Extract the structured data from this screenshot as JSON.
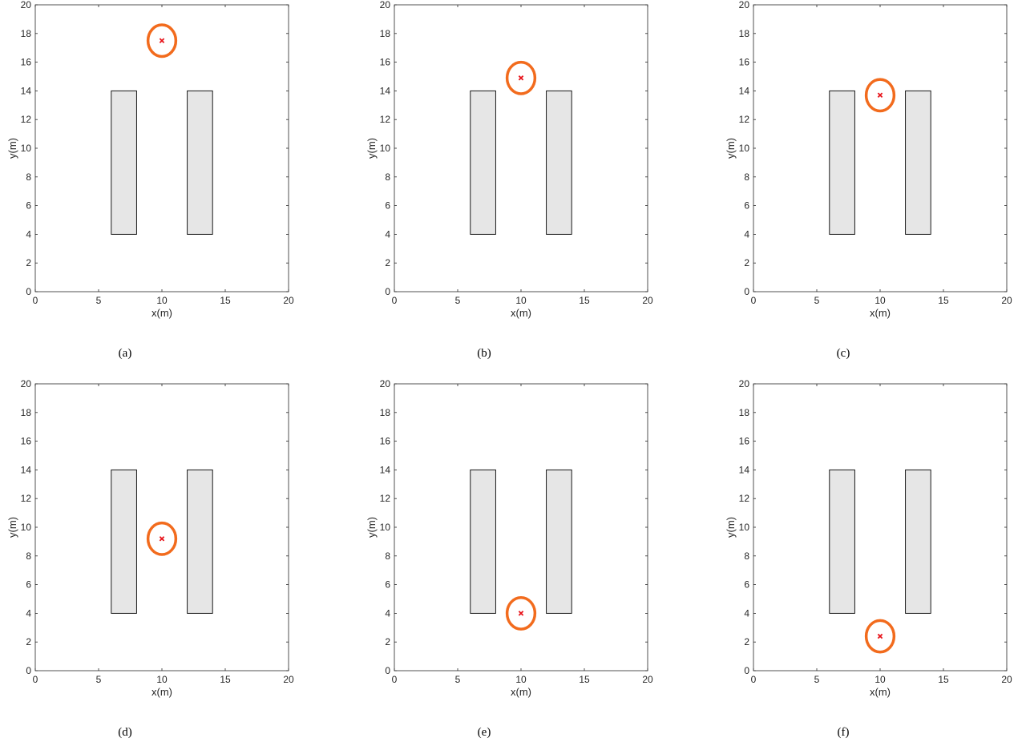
{
  "colors": {
    "axis": "#262626",
    "obstacle_fill": "#e6e6e6",
    "obstacle_edge": "#000000",
    "circle": "#f26b1d",
    "marker": "#e8141b"
  },
  "chart_data": [
    {
      "type": "scatter",
      "caption": "(a)",
      "xlabel": "x(m)",
      "ylabel": "y(m)",
      "xlim": [
        0,
        20
      ],
      "ylim": [
        0,
        20
      ],
      "xticks": [
        0,
        5,
        10,
        15,
        20
      ],
      "yticks": [
        0,
        2,
        4,
        6,
        8,
        10,
        12,
        14,
        16,
        18,
        20
      ],
      "grid": false,
      "obstacles": [
        {
          "x": [
            6,
            8
          ],
          "y": [
            4,
            14
          ]
        },
        {
          "x": [
            12,
            14
          ],
          "y": [
            4,
            14
          ]
        }
      ],
      "target": {
        "x": 10,
        "y": 17.5
      },
      "circle_radius": 1.1
    },
    {
      "type": "scatter",
      "caption": "(b)",
      "xlabel": "x(m)",
      "ylabel": "y(m)",
      "xlim": [
        0,
        20
      ],
      "ylim": [
        0,
        20
      ],
      "xticks": [
        0,
        5,
        10,
        15,
        20
      ],
      "yticks": [
        0,
        2,
        4,
        6,
        8,
        10,
        12,
        14,
        16,
        18,
        20
      ],
      "grid": false,
      "obstacles": [
        {
          "x": [
            6,
            8
          ],
          "y": [
            4,
            14
          ]
        },
        {
          "x": [
            12,
            14
          ],
          "y": [
            4,
            14
          ]
        }
      ],
      "target": {
        "x": 10,
        "y": 14.9
      },
      "circle_radius": 1.1
    },
    {
      "type": "scatter",
      "caption": "(c)",
      "xlabel": "x(m)",
      "ylabel": "y(m)",
      "xlim": [
        0,
        20
      ],
      "ylim": [
        0,
        20
      ],
      "xticks": [
        0,
        5,
        10,
        15,
        20
      ],
      "yticks": [
        0,
        2,
        4,
        6,
        8,
        10,
        12,
        14,
        16,
        18,
        20
      ],
      "grid": false,
      "obstacles": [
        {
          "x": [
            6,
            8
          ],
          "y": [
            4,
            14
          ]
        },
        {
          "x": [
            12,
            14
          ],
          "y": [
            4,
            14
          ]
        }
      ],
      "target": {
        "x": 10,
        "y": 13.7
      },
      "circle_radius": 1.1
    },
    {
      "type": "scatter",
      "caption": "(d)",
      "xlabel": "x(m)",
      "ylabel": "y(m)",
      "xlim": [
        0,
        20
      ],
      "ylim": [
        0,
        20
      ],
      "xticks": [
        0,
        5,
        10,
        15,
        20
      ],
      "yticks": [
        0,
        2,
        4,
        6,
        8,
        10,
        12,
        14,
        16,
        18,
        20
      ],
      "grid": false,
      "obstacles": [
        {
          "x": [
            6,
            8
          ],
          "y": [
            4,
            14
          ]
        },
        {
          "x": [
            12,
            14
          ],
          "y": [
            4,
            14
          ]
        }
      ],
      "target": {
        "x": 10,
        "y": 9.2
      },
      "circle_radius": 1.1
    },
    {
      "type": "scatter",
      "caption": "(e)",
      "xlabel": "x(m)",
      "ylabel": "y(m)",
      "xlim": [
        0,
        20
      ],
      "ylim": [
        0,
        20
      ],
      "xticks": [
        0,
        5,
        10,
        15,
        20
      ],
      "yticks": [
        0,
        2,
        4,
        6,
        8,
        10,
        12,
        14,
        16,
        18,
        20
      ],
      "grid": false,
      "obstacles": [
        {
          "x": [
            6,
            8
          ],
          "y": [
            4,
            14
          ]
        },
        {
          "x": [
            12,
            14
          ],
          "y": [
            4,
            14
          ]
        }
      ],
      "target": {
        "x": 10,
        "y": 4.0
      },
      "circle_radius": 1.1
    },
    {
      "type": "scatter",
      "caption": "(f)",
      "xlabel": "x(m)",
      "ylabel": "y(m)",
      "xlim": [
        0,
        20
      ],
      "ylim": [
        0,
        20
      ],
      "xticks": [
        0,
        5,
        10,
        15,
        20
      ],
      "yticks": [
        0,
        2,
        4,
        6,
        8,
        10,
        12,
        14,
        16,
        18,
        20
      ],
      "grid": false,
      "obstacles": [
        {
          "x": [
            6,
            8
          ],
          "y": [
            4,
            14
          ]
        },
        {
          "x": [
            12,
            14
          ],
          "y": [
            4,
            14
          ]
        }
      ],
      "target": {
        "x": 10,
        "y": 2.4
      },
      "circle_radius": 1.1
    }
  ]
}
